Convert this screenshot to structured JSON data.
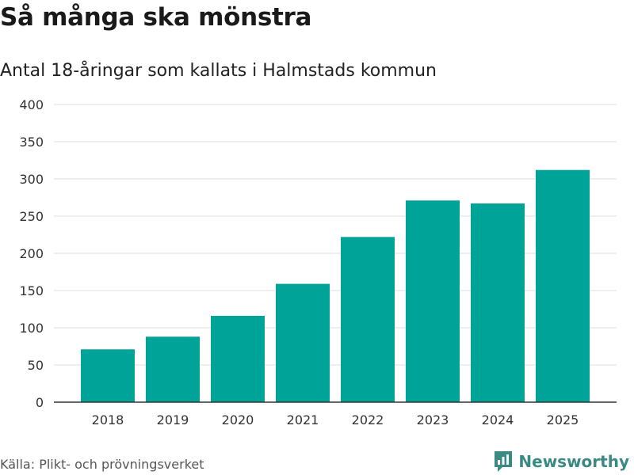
{
  "header": {
    "title": "Så många ska mönstra",
    "subtitle": "Antal 18-åringar som kallats i Halmstads kommun"
  },
  "footer": {
    "source": "Källa: Plikt- och prövningsverket",
    "brand": "Newsworthy",
    "brand_icon": "bar-chart-speech-bubble-icon"
  },
  "colors": {
    "bar": "#00a398",
    "grid": "#dddddd",
    "axis": "#333333",
    "brand": "#3a8a83"
  },
  "chart_data": {
    "type": "bar",
    "title": "Så många ska mönstra",
    "subtitle": "Antal 18-åringar som kallats i Halmstads kommun",
    "xlabel": "",
    "ylabel": "",
    "categories": [
      "2018",
      "2019",
      "2020",
      "2021",
      "2022",
      "2023",
      "2024",
      "2025"
    ],
    "values": [
      71,
      88,
      116,
      159,
      222,
      271,
      267,
      312
    ],
    "ylim": [
      0,
      400
    ],
    "yticks": [
      0,
      50,
      100,
      150,
      200,
      250,
      300,
      350,
      400
    ],
    "grid": true
  }
}
